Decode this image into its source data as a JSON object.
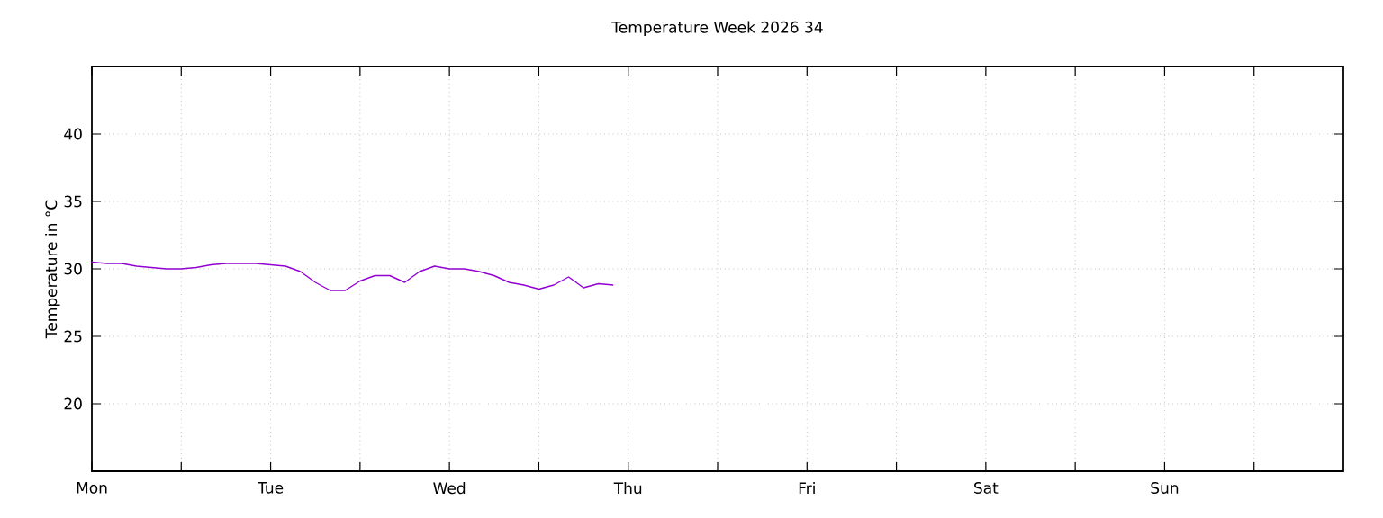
{
  "chart_data": {
    "type": "line",
    "title": "Temperature Week 2026 34",
    "ylabel": "Temperature in °C",
    "categories": [
      "Mon",
      null,
      null,
      null,
      null,
      null,
      null,
      null,
      null,
      null,
      null,
      null,
      "Tue",
      null,
      null,
      null,
      null,
      null,
      null,
      null,
      null,
      null,
      null,
      null,
      "Wed",
      null,
      null,
      null,
      null,
      null,
      null,
      null,
      null,
      null,
      null,
      null,
      "Thu",
      null,
      null,
      null,
      null,
      null,
      null,
      null,
      null,
      null,
      null,
      null,
      "Fri",
      null,
      null,
      null,
      null,
      null,
      null,
      null,
      null,
      null,
      null,
      null,
      "Sat",
      null,
      null,
      null,
      null,
      null,
      null,
      null,
      null,
      null,
      null,
      null,
      "Sun",
      null,
      null,
      null,
      null,
      null,
      null,
      null,
      null,
      null,
      null,
      null
    ],
    "ylim": [
      15,
      45
    ],
    "yticks": [
      20,
      25,
      30,
      35,
      40
    ],
    "grid": true,
    "series": [
      {
        "color": "#9400d3",
        "values": [
          30.5,
          30.4,
          30.4,
          30.2,
          30.1,
          30.0,
          30.0,
          30.1,
          30.3,
          30.4,
          30.4,
          30.4,
          30.3,
          30.2,
          29.8,
          29.0,
          28.4,
          28.4,
          29.1,
          29.5,
          29.5,
          29.0,
          29.8,
          30.2,
          30.0,
          30.0,
          29.8,
          29.5,
          29.0,
          28.8,
          28.5,
          28.8,
          29.4,
          28.6,
          28.9,
          28.8,
          null,
          null,
          null,
          null,
          null,
          null,
          null,
          null,
          null,
          null,
          null,
          null,
          null,
          null,
          null,
          null,
          null,
          null,
          null,
          null,
          null,
          null,
          null,
          null,
          null,
          null,
          null,
          null,
          null,
          null,
          null,
          null,
          null,
          null,
          null,
          null,
          null,
          null,
          null,
          null,
          null,
          null,
          null,
          null,
          null,
          null,
          null,
          null
        ]
      }
    ]
  }
}
